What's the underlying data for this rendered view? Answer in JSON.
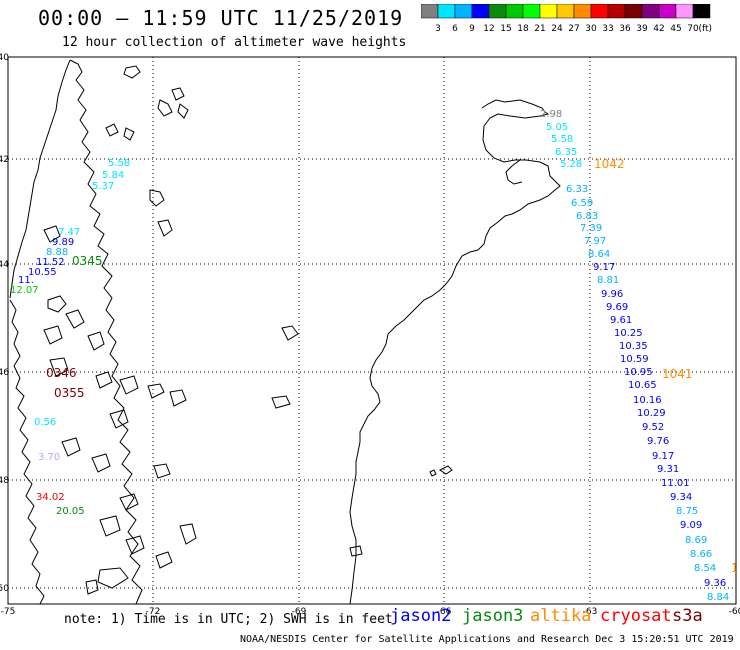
{
  "header": {
    "title": "00:00 – 11:59 UTC 11/25/2019",
    "subtitle": "12 hour collection of altimeter wave heights"
  },
  "legend": {
    "colors": [
      "#808080",
      "#00e5ff",
      "#00b4ff",
      "#0000ff",
      "#0a8a0a",
      "#00c800",
      "#00ff00",
      "#ffff00",
      "#ffc800",
      "#ff8c00",
      "#ff0000",
      "#b40000",
      "#780000",
      "#800080",
      "#c800c8",
      "#ff96ff",
      "#000000"
    ],
    "labels": [
      "3",
      "6",
      "9",
      "12",
      "15",
      "18",
      "21",
      "24",
      "27",
      "30",
      "33",
      "36",
      "39",
      "42",
      "45",
      "70"
    ],
    "unit": "(ft)"
  },
  "axes": {
    "lat_labels": [
      "-40",
      "-42",
      "-44",
      "-46",
      "-48",
      "-50"
    ],
    "lon_labels": [
      "-75",
      "-72",
      "-69",
      "-66",
      "-63",
      "-60"
    ]
  },
  "annotations": {
    "pressure_labels": [
      "1042",
      "1041",
      "1"
    ],
    "left_cluster_highs": [
      "0345",
      "0346",
      "0355"
    ]
  },
  "track_values": {
    "east_track": [
      "2.98",
      "5.05",
      "5.58",
      "6.35",
      "5.28",
      "6.33",
      "6.59",
      "6.83",
      "7.39",
      "7.97",
      "8.64",
      "9.17",
      "8.81",
      "9.96",
      "9.69",
      "9.61",
      "10.25",
      "10.35",
      "10.59",
      "10.95",
      "10.65",
      "10.16",
      "10.29",
      "9.52",
      "9.76",
      "9.17",
      "9.31",
      "11.01",
      "9.34",
      "8.75",
      "9.09",
      "8.69",
      "8.66",
      "8.54",
      "9.36",
      "8.84"
    ],
    "east_track_colors": [
      "#808080",
      "#00e5ff",
      "#00e5ff",
      "#00e5ff",
      "#00e5ff",
      "#00b4ff",
      "#00b4ff",
      "#00b4ff",
      "#00b4ff",
      "#00b4ff",
      "#00b4ff",
      "#0000ff",
      "#00b4ff",
      "#0000ff",
      "#0000ff",
      "#0000ff",
      "#0000ff",
      "#0000ff",
      "#0000ff",
      "#0000ff",
      "#0000ff",
      "#0000ff",
      "#0000ff",
      "#0000ff",
      "#0000ff",
      "#0000ff",
      "#0000ff",
      "#0000ff",
      "#0000ff",
      "#00b4ff",
      "#0000ff",
      "#00b4ff",
      "#00b4ff",
      "#00b4ff",
      "#0000ff",
      "#00b4ff"
    ],
    "west_values": [
      "5.58",
      "5.84",
      "5.37",
      "7.47",
      "9.89",
      "8.88",
      "11.52",
      "10.55",
      "11.",
      "12.07",
      "0.56",
      "34.02",
      "20.05",
      "3.70"
    ],
    "west_colors": [
      "#00e5ff",
      "#00e5ff",
      "#00e5ff",
      "#00e5ff",
      "#0000ff",
      "#00b4ff",
      "#0000ff",
      "#0000ff",
      "#0000ff",
      "#00c800",
      "#00e5ff",
      "#ff0000",
      "#0a8a0a",
      "#c8a0ff"
    ]
  },
  "satellites": [
    {
      "name": "jason2",
      "color": "#0000ff"
    },
    {
      "name": "jason3",
      "color": "#0a8a0a"
    },
    {
      "name": "altika",
      "color": "#ff8c00"
    },
    {
      "name": "cryosat",
      "color": "#ff0000"
    },
    {
      "name": "s3a",
      "color": "#800000"
    }
  ],
  "note": "note: 1) Time is in UTC; 2) SWH is in feet",
  "footer": "NOAA/NESDIS Center for Satellite Applications and Research    Dec  3 15:20:51 UTC 2019"
}
